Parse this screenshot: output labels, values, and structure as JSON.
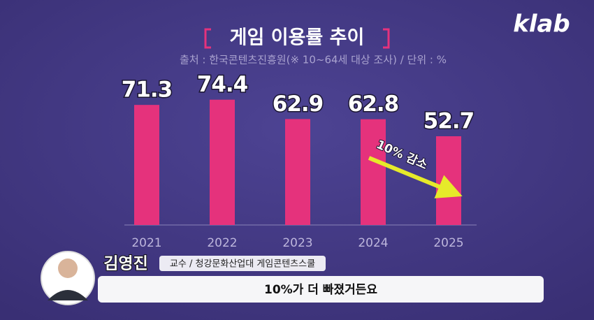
{
  "logo": "klab",
  "chart_data": {
    "type": "bar",
    "title": "게임 이용률 추이",
    "subtitle": "출처 : 한국콘텐츠진흥원(※ 10~64세 대상 조사) / 단위 : %",
    "categories": [
      "2021",
      "2022",
      "2023",
      "2024",
      "2025"
    ],
    "values": [
      71.3,
      74.4,
      62.9,
      62.8,
      52.7
    ],
    "color": "#e5327c",
    "annotation": "10% 감소"
  },
  "caption": {
    "name": "김영진",
    "role": "교수 / 청강문화산업대 게임콘텐츠스쿨",
    "subtitle": "10%가 더 빠졌거든요"
  }
}
